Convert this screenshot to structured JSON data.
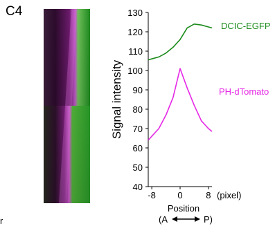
{
  "panel_label": "C4",
  "stray_text": "r",
  "colors": {
    "series1": "#1a8a1a",
    "series2": "#e628e6",
    "axis": "#000000"
  },
  "chart_data": {
    "type": "line",
    "ylabel": "Signal intensity",
    "xlabel": "Position",
    "x_direction_label": "(A ↔ P)",
    "x_direction_parts": {
      "left": "(A",
      "right": "P)"
    },
    "x_unit": "(pixel)",
    "yticks": [
      40,
      50,
      60,
      70,
      80,
      90,
      100,
      110,
      120,
      130
    ],
    "xticks": [
      -8,
      0,
      8
    ],
    "ylim": [
      40,
      130
    ],
    "xlim": [
      -9,
      9
    ],
    "grid": false,
    "series": [
      {
        "name": "DCIC-EGFP",
        "color": "#1a8a1a",
        "x": [
          -9,
          -8,
          -6,
          -4,
          -2,
          0,
          2,
          4,
          6,
          8,
          9
        ],
        "y": [
          105.5,
          106,
          107,
          109,
          112,
          116,
          122,
          124,
          123.5,
          122.5,
          122
        ]
      },
      {
        "name": "PH-dTomato",
        "color": "#e628e6",
        "x": [
          -9,
          -8,
          -6,
          -4,
          -2,
          0,
          2,
          4,
          6,
          8,
          9
        ],
        "y": [
          64,
          66,
          70,
          77,
          86,
          101,
          91,
          82,
          74,
          70,
          68.5
        ]
      }
    ]
  }
}
